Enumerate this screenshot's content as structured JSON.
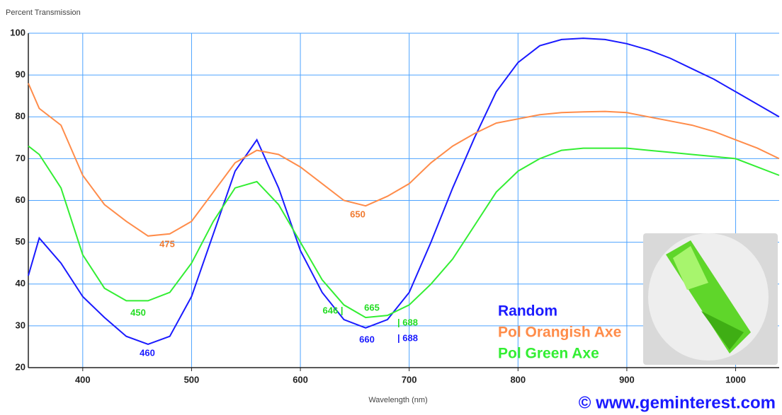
{
  "chart_data": {
    "type": "line",
    "y_label": "Percent Transmission",
    "x_label": "Wavelength (nm)",
    "credit": "© www.geminterest.com",
    "x": [
      350,
      360,
      380,
      400,
      420,
      440,
      460,
      480,
      500,
      520,
      540,
      560,
      580,
      600,
      620,
      640,
      660,
      680,
      700,
      720,
      740,
      760,
      780,
      800,
      820,
      840,
      860,
      880,
      900,
      920,
      940,
      960,
      980,
      1000,
      1020,
      1040
    ],
    "xlim": [
      350,
      1040
    ],
    "xticks": [
      400,
      500,
      600,
      700,
      800,
      900,
      1000
    ],
    "ylim": [
      20,
      100
    ],
    "yticks": [
      20,
      30,
      40,
      50,
      60,
      70,
      80,
      90,
      100
    ],
    "grid": true,
    "grid_color": "#4da3ff",
    "series": [
      {
        "name": "Random",
        "color": "#1a1aff",
        "values": [
          42,
          51,
          45,
          37,
          32,
          27.5,
          25.6,
          27.5,
          37,
          52,
          67,
          74.5,
          63,
          48,
          38,
          31.5,
          29.5,
          31.5,
          38,
          50,
          63,
          75,
          86,
          93,
          97,
          98.5,
          98.8,
          98.5,
          97.5,
          96,
          94,
          91.5,
          89,
          86,
          83,
          80
        ]
      },
      {
        "name": "Pol Orangish Axe",
        "color": "#ff8c4a",
        "values": [
          88,
          82,
          78,
          66,
          59,
          55,
          51.5,
          52,
          55,
          62,
          69,
          72,
          71,
          68,
          64,
          60,
          58.7,
          61,
          64,
          69,
          73,
          76,
          78.5,
          79.5,
          80.5,
          81,
          81.2,
          81.3,
          81,
          80,
          79,
          78,
          76.5,
          74.5,
          72.5,
          70
        ]
      },
      {
        "name": "Pol Green Axe",
        "color": "#33ee33",
        "values": [
          73,
          71,
          63,
          47,
          39,
          36,
          36,
          38,
          45,
          55,
          63,
          64.5,
          59,
          50,
          41,
          35,
          32,
          32.5,
          35,
          40,
          46,
          54,
          62,
          67,
          70,
          72,
          72.5,
          72.5,
          72.5,
          72,
          71.5,
          71,
          70.5,
          70,
          68,
          66
        ]
      }
    ],
    "annotations": [
      {
        "text": "460",
        "color": "#1a1aff"
      },
      {
        "text": "475",
        "color": "#f07a30"
      },
      {
        "text": "450",
        "color": "#22dd22"
      },
      {
        "text": "650",
        "color": "#f07a30"
      },
      {
        "text": "660",
        "color": "#1a1aff"
      },
      {
        "text": "665",
        "color": "#22dd22"
      },
      {
        "text": "646 |",
        "color": "#22dd22"
      },
      {
        "text": "| 688",
        "color": "#22dd22"
      },
      {
        "text": "| 688",
        "color": "#1a1aff"
      }
    ]
  }
}
